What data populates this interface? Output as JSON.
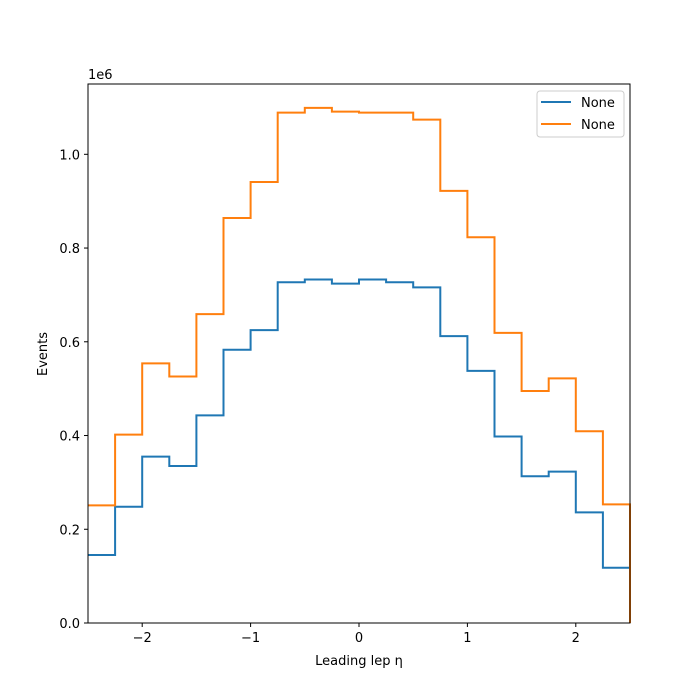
{
  "chart_data": {
    "type": "step-histogram",
    "xlabel": "Leading lep η",
    "ylabel": "Events",
    "y_offset_text": "1e6",
    "xlim": [
      -2.5,
      2.5
    ],
    "ylim": [
      0,
      1.15
    ],
    "y_scale_note": "values in units of 1e6",
    "xticks": [
      -2,
      -1,
      0,
      1,
      2
    ],
    "xtick_labels": [
      "−2",
      "−1",
      "0",
      "1",
      "2"
    ],
    "yticks": [
      0.0,
      0.2,
      0.4,
      0.6,
      0.8,
      1.0
    ],
    "ytick_labels": [
      "0.0",
      "0.2",
      "0.4",
      "0.6",
      "0.8",
      "1.0"
    ],
    "bin_edges": [
      -2.5,
      -2.25,
      -2.0,
      -1.75,
      -1.5,
      -1.25,
      -1.0,
      -0.75,
      -0.5,
      -0.25,
      0.0,
      0.25,
      0.5,
      0.75,
      1.0,
      1.25,
      1.5,
      1.75,
      2.0,
      2.25,
      2.5
    ],
    "series": [
      {
        "name": "None",
        "color": "#1f77b4",
        "values": [
          0.145,
          0.248,
          0.355,
          0.335,
          0.443,
          0.583,
          0.625,
          0.727,
          0.733,
          0.724,
          0.733,
          0.727,
          0.716,
          0.612,
          0.538,
          0.398,
          0.313,
          0.323,
          0.236,
          0.118
        ]
      },
      {
        "name": "None",
        "color": "#ff7f0e",
        "values": [
          0.251,
          0.402,
          0.554,
          0.526,
          0.659,
          0.864,
          0.941,
          1.089,
          1.099,
          1.091,
          1.089,
          1.089,
          1.074,
          0.922,
          0.823,
          0.619,
          0.495,
          0.522,
          0.409,
          0.253
        ]
      }
    ],
    "legend": {
      "location": "upper right",
      "entries": [
        "None",
        "None"
      ]
    },
    "grid": false
  }
}
